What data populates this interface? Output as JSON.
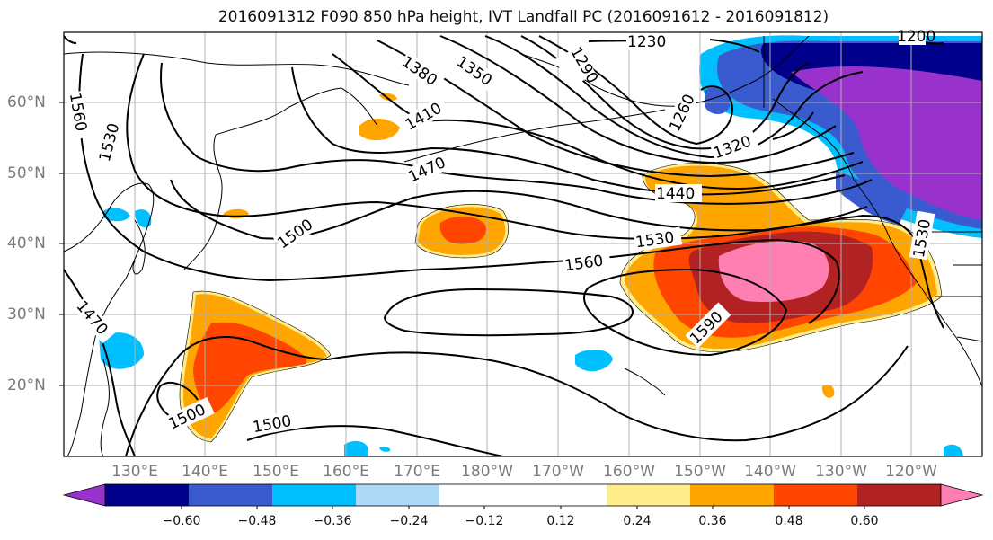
{
  "title": "2016091312 F090 850 hPa height, IVT Landfall PC (2016091612 - 2016091812)",
  "lat_labels": [
    "60°N",
    "50°N",
    "40°N",
    "30°N",
    "20°N"
  ],
  "lon_labels": [
    "130°E",
    "140°E",
    "150°E",
    "160°E",
    "170°E",
    "180°W",
    "170°W",
    "160°W",
    "150°W",
    "140°W",
    "130°W",
    "120°W"
  ],
  "contour_labels": [
    "1230",
    "1290",
    "1260",
    "1320",
    "1350",
    "1380",
    "1410",
    "1440",
    "1470",
    "1500",
    "1530",
    "1560",
    "1590",
    "1500",
    "1500",
    "1560",
    "1530",
    "1470",
    "1530",
    "1200"
  ],
  "colorbar": {
    "colors": [
      "#9932CC",
      "#00008B",
      "#3A5BCF",
      "#00BFFF",
      "#ADD8F6",
      "#FFFFFF",
      "#FFFFFF",
      "#FFEC8B",
      "#FFA500",
      "#FF4500",
      "#B22222",
      "#FF7FB2"
    ],
    "tick_labels": [
      "−0.60",
      "−0.48",
      "−0.36",
      "−0.24",
      "−0.12",
      "0.12",
      "0.24",
      "0.36",
      "0.48",
      "0.60"
    ]
  },
  "contour_color": "#000000",
  "grid_color": "#b0b0b0",
  "coast_color": "#000000"
}
